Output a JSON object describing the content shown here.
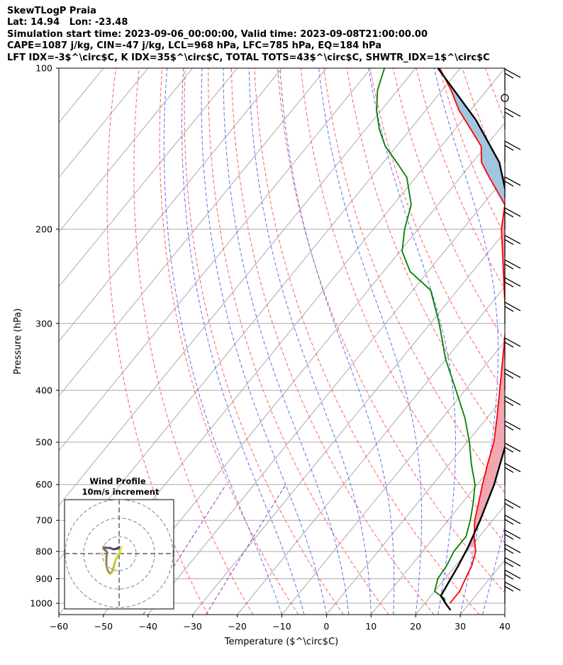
{
  "header": {
    "line1": "SkewTLogP Praia",
    "line2": "Lat: 14.94   Lon: -23.48",
    "line3": "Simulation start time: 2023-09-06_00:00:00, Valid time: 2023-09-08T21:00:00.00",
    "line4": "CAPE=1087 j/kg, CIN=-47 j/kg, LCL=968 hPa, LFC=785 hPa, EQ=184 hPa",
    "line5": "LFT IDX=-3$^\\circ$C, K IDX=35$^\\circ$C, TOTAL TOTS=43$^\\circ$C, SHWTR_IDX=1$^\\circ$C"
  },
  "colors": {
    "temperature": "#ff0000",
    "dewpoint": "#008000",
    "parcel": "#000000",
    "cape_fill": "#f0a0a8",
    "cin_fill": "#9cc3de",
    "dry_adiabat": "#ff6060",
    "moist_adiabat": "#6070f0",
    "mixing_ratio": "#9932cc",
    "isotherm": "#aaaaaa",
    "isobar": "#aaaaaa"
  },
  "chart_data": {
    "type": "line",
    "xlabel": "Temperature ($^\\circ$C)",
    "ylabel": "Pressure (hPa)",
    "xlim": [
      -60,
      40
    ],
    "ylim": [
      1050,
      100
    ],
    "yscale": "log",
    "skew": true,
    "grid": true,
    "xticks": [
      "−60",
      "−50",
      "−40",
      "−30",
      "−20",
      "−10",
      "0",
      "10",
      "20",
      "30",
      "40"
    ],
    "yticks": [
      "100",
      "200",
      "300",
      "400",
      "500",
      "600",
      "700",
      "800",
      "900",
      "1000"
    ],
    "series": [
      {
        "key": "temperature",
        "pressure": [
          1000,
          950,
          900,
          850,
          800,
          750,
          700,
          650,
          600,
          550,
          500,
          450,
          400,
          350,
          300,
          260,
          220,
          200,
          180,
          160,
          150,
          140,
          130,
          120,
          110,
          100
        ],
        "values": [
          25.6,
          25.6,
          24.6,
          23.6,
          21.9,
          18.8,
          16.0,
          13.7,
          11.2,
          8.6,
          6.0,
          2.2,
          -2.2,
          -7.2,
          -13.0,
          -19.5,
          -27.0,
          -31.3,
          -35.0,
          -43.5,
          -48.0,
          -51.0,
          -56.5,
          -62.5,
          -68.0,
          -74.6
        ]
      },
      {
        "key": "dewpoint",
        "pressure": [
          1000,
          980,
          950,
          900,
          850,
          800,
          750,
          700,
          650,
          600,
          550,
          500,
          450,
          400,
          350,
          300,
          260,
          240,
          220,
          200,
          180,
          160,
          150,
          140,
          130,
          120,
          110,
          100
        ],
        "values": [
          24.6,
          23.5,
          20.0,
          18.4,
          18.0,
          17.0,
          17.0,
          15.0,
          12.5,
          9.5,
          5.0,
          0.5,
          -5.0,
          -12.0,
          -20.0,
          -28.0,
          -36.0,
          -44.0,
          -49.5,
          -53.0,
          -56.0,
          -62.0,
          -67.0,
          -72.5,
          -77.0,
          -81.0,
          -84.5,
          -87.0
        ]
      },
      {
        "key": "parcel",
        "pressure": [
          1030,
          1000,
          968,
          900,
          850,
          785,
          700,
          600,
          500,
          400,
          300,
          250,
          200,
          184,
          150,
          125,
          100
        ],
        "values": [
          27.0,
          24.6,
          22.2,
          21.3,
          20.6,
          19.4,
          17.2,
          13.8,
          8.8,
          1.4,
          -10.4,
          -18.4,
          -28.8,
          -33.0,
          -44.0,
          -57.0,
          -75.0
        ]
      }
    ],
    "cape_range_hPa": [
      785,
      184
    ],
    "cin_range_hPa": [
      184,
      100
    ]
  },
  "wind_barbs": {
    "pressures": [
      1000,
      950,
      900,
      850,
      800,
      750,
      700,
      600,
      550,
      500,
      450,
      400,
      350,
      300,
      270,
      250,
      225,
      200,
      175,
      150,
      130,
      110,
      100
    ]
  },
  "inset": {
    "title": "Wind Profile",
    "subtitle": "10m/s increment"
  }
}
